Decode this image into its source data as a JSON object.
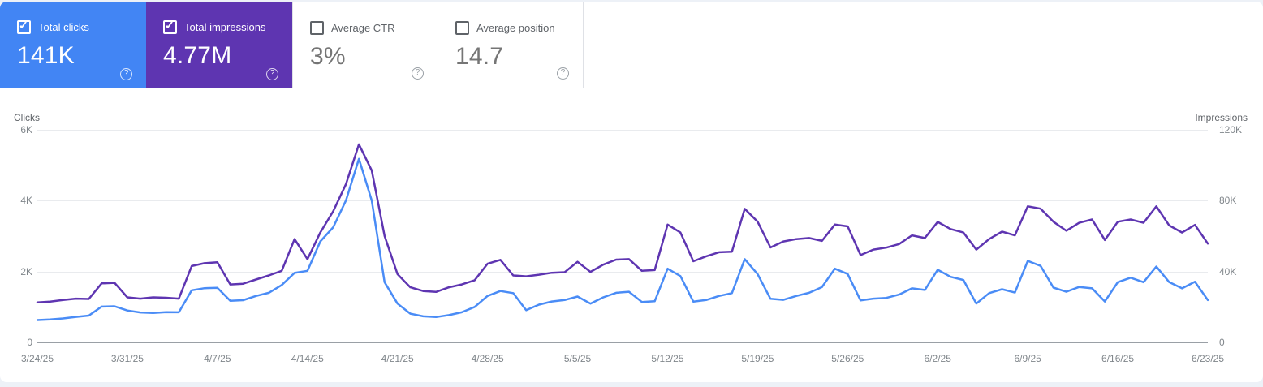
{
  "cards": [
    {
      "label": "Total clicks",
      "value": "141K",
      "checked": true,
      "bg": "#4285f4"
    },
    {
      "label": "Total impressions",
      "value": "4.77M",
      "checked": true,
      "bg": "#5e35b1"
    },
    {
      "label": "Average CTR",
      "value": "3%",
      "checked": false
    },
    {
      "label": "Average position",
      "value": "14.7",
      "checked": false
    }
  ],
  "checkmark_icon": "✓",
  "help_icon": "?",
  "chart_data": {
    "type": "line",
    "grid": "horizontal",
    "left_axis": {
      "title": "Clicks",
      "range": [
        0,
        6000
      ],
      "tick_labels": [
        "0",
        "2K",
        "4K",
        "6K"
      ]
    },
    "right_axis": {
      "title": "Impressions",
      "range": [
        0,
        120000
      ],
      "tick_labels": [
        "0",
        "40K",
        "80K",
        "120K"
      ]
    },
    "x_tick_labels": [
      "3/24/25",
      "3/31/25",
      "4/7/25",
      "4/14/25",
      "4/21/25",
      "4/28/25",
      "5/5/25",
      "5/12/25",
      "5/19/25",
      "5/26/25",
      "6/2/25",
      "6/9/25",
      "6/16/25",
      "6/23/25"
    ],
    "x_start_date": "3/24/25",
    "x_end_date": "6/23/25",
    "series": [
      {
        "name": "Clicks",
        "axis": "left",
        "color": "#4a8cf6",
        "values": [
          630,
          645,
          675,
          720,
          755,
          1010,
          1020,
          900,
          845,
          830,
          855,
          850,
          1470,
          1530,
          1540,
          1175,
          1190,
          1310,
          1400,
          1620,
          1960,
          2020,
          2850,
          3250,
          4010,
          5180,
          4000,
          1700,
          1095,
          810,
          735,
          715,
          770,
          850,
          1000,
          1310,
          1450,
          1390,
          910,
          1065,
          1155,
          1195,
          1295,
          1095,
          1270,
          1400,
          1430,
          1140,
          1160,
          2080,
          1870,
          1150,
          1195,
          1310,
          1390,
          2350,
          1925,
          1230,
          1200,
          1310,
          1400,
          1560,
          2080,
          1930,
          1185,
          1235,
          1255,
          1350,
          1525,
          1480,
          2050,
          1850,
          1760,
          1095,
          1390,
          1500,
          1405,
          2300,
          2160,
          1545,
          1430,
          1565,
          1525,
          1155,
          1700,
          1825,
          1700,
          2140,
          1700,
          1525,
          1710,
          1195
        ]
      },
      {
        "name": "Impressions",
        "axis": "right",
        "color": "#5e35b1",
        "values": [
          22600,
          23000,
          23900,
          24700,
          24500,
          33300,
          33600,
          25400,
          24700,
          25400,
          25200,
          24700,
          43100,
          44700,
          45200,
          32700,
          33100,
          35500,
          37800,
          40400,
          58300,
          47000,
          62000,
          74000,
          89400,
          111800,
          97000,
          60100,
          38500,
          31100,
          29000,
          28500,
          31100,
          32700,
          35100,
          44400,
          46600,
          37800,
          37300,
          38200,
          39300,
          39600,
          45500,
          39800,
          43900,
          46700,
          47000,
          40400,
          40800,
          66500,
          62000,
          45800,
          48600,
          50900,
          51200,
          75400,
          68100,
          53600,
          57000,
          58300,
          58900,
          57300,
          66500,
          65500,
          49300,
          52400,
          53500,
          55500,
          60400,
          58900,
          68000,
          64000,
          62000,
          52400,
          58300,
          62500,
          60400,
          76800,
          75500,
          68100,
          63000,
          67500,
          69400,
          57800,
          68100,
          69400,
          67500,
          76800,
          66000,
          62000,
          66300,
          55800
        ]
      }
    ]
  }
}
